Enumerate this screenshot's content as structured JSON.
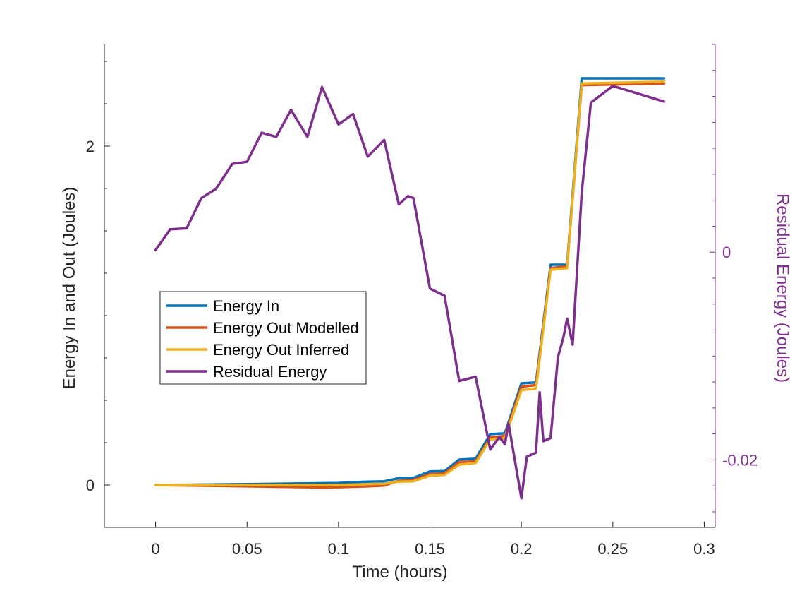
{
  "chart_data": {
    "type": "line",
    "title": "",
    "xlabel": "Time (hours)",
    "ylabel_left": "Energy In and Out (Joules)",
    "ylabel_right": "Residual Energy (Joules)",
    "xlim": [
      -0.028,
      0.306
    ],
    "ylim_left": [
      -0.25,
      2.6
    ],
    "ylim_right": [
      -0.0265,
      0.02
    ],
    "x_ticks": [
      0,
      0.05,
      0.1,
      0.15,
      0.2,
      0.25,
      0.3
    ],
    "x_tick_labels": [
      "0",
      "0.05",
      "0.1",
      "0.15",
      "0.2",
      "0.25",
      "0.3"
    ],
    "y_left_ticks": [
      0,
      2
    ],
    "y_left_tick_labels": [
      "0",
      "2"
    ],
    "y_right_ticks": [
      -0.02,
      0
    ],
    "y_right_tick_labels": [
      "-0.02",
      "0"
    ],
    "grid": false,
    "legend": {
      "position": "center-left",
      "entries": [
        "Energy In",
        "Energy Out Modelled",
        "Energy Out Inferred",
        "Residual Energy"
      ]
    },
    "series": [
      {
        "name": "Energy In",
        "axis": "left",
        "color": "#0072BD",
        "x": [
          0,
          0.05,
          0.1,
          0.116,
          0.125,
          0.133,
          0.141,
          0.15,
          0.158,
          0.166,
          0.175,
          0.183,
          0.191,
          0.2,
          0.208,
          0.216,
          0.225,
          0.233,
          0.278
        ],
        "y": [
          0,
          0.005,
          0.012,
          0.02,
          0.022,
          0.04,
          0.042,
          0.08,
          0.082,
          0.15,
          0.155,
          0.3,
          0.305,
          0.6,
          0.605,
          1.3,
          1.3,
          2.4,
          2.4
        ]
      },
      {
        "name": "Energy Out Modelled",
        "axis": "left",
        "color": "#D95319",
        "x": [
          0,
          0.05,
          0.09,
          0.1,
          0.116,
          0.125,
          0.133,
          0.141,
          0.15,
          0.158,
          0.166,
          0.175,
          0.183,
          0.191,
          0.2,
          0.208,
          0.216,
          0.225,
          0.233,
          0.278
        ],
        "y": [
          0,
          -0.008,
          -0.014,
          -0.013,
          -0.008,
          -0.003,
          0.025,
          0.03,
          0.065,
          0.07,
          0.135,
          0.14,
          0.28,
          0.29,
          0.58,
          0.59,
          1.28,
          1.29,
          2.36,
          2.37
        ]
      },
      {
        "name": "Energy Out Inferred",
        "axis": "left",
        "color": "#EDB120",
        "x": [
          0,
          0.05,
          0.1,
          0.116,
          0.125,
          0.133,
          0.141,
          0.15,
          0.158,
          0.166,
          0.175,
          0.183,
          0.191,
          0.2,
          0.208,
          0.216,
          0.225,
          0.233,
          0.278
        ],
        "y": [
          0,
          0.0,
          0.0,
          0.005,
          0.008,
          0.02,
          0.022,
          0.055,
          0.06,
          0.12,
          0.13,
          0.27,
          0.275,
          0.56,
          0.57,
          1.27,
          1.28,
          2.37,
          2.38
        ]
      },
      {
        "name": "Residual Energy",
        "axis": "right",
        "color": "#7E2F8E",
        "x": [
          0,
          0.008,
          0.017,
          0.025,
          0.033,
          0.042,
          0.05,
          0.058,
          0.066,
          0.074,
          0.083,
          0.091,
          0.1,
          0.108,
          0.116,
          0.125,
          0.133,
          0.138,
          0.141,
          0.15,
          0.158,
          0.166,
          0.175,
          0.183,
          0.188,
          0.191,
          0.193,
          0.2,
          0.203,
          0.208,
          0.21,
          0.212,
          0.216,
          0.22,
          0.223,
          0.225,
          0.228,
          0.233,
          0.238,
          0.25,
          0.265,
          0.278
        ],
        "y": [
          0.0002,
          0.0022,
          0.0023,
          0.0052,
          0.0061,
          0.0085,
          0.0087,
          0.0115,
          0.0111,
          0.0137,
          0.0111,
          0.0159,
          0.0123,
          0.0133,
          0.0092,
          0.0108,
          0.0046,
          0.0054,
          0.0052,
          -0.0035,
          -0.0042,
          -0.0124,
          -0.012,
          -0.019,
          -0.0178,
          -0.0185,
          -0.0165,
          -0.0237,
          -0.0197,
          -0.0193,
          -0.0135,
          -0.0182,
          -0.0179,
          -0.0101,
          -0.0082,
          -0.0064,
          -0.0089,
          0.0057,
          0.0144,
          0.016,
          0.0152,
          0.0145
        ]
      }
    ]
  }
}
